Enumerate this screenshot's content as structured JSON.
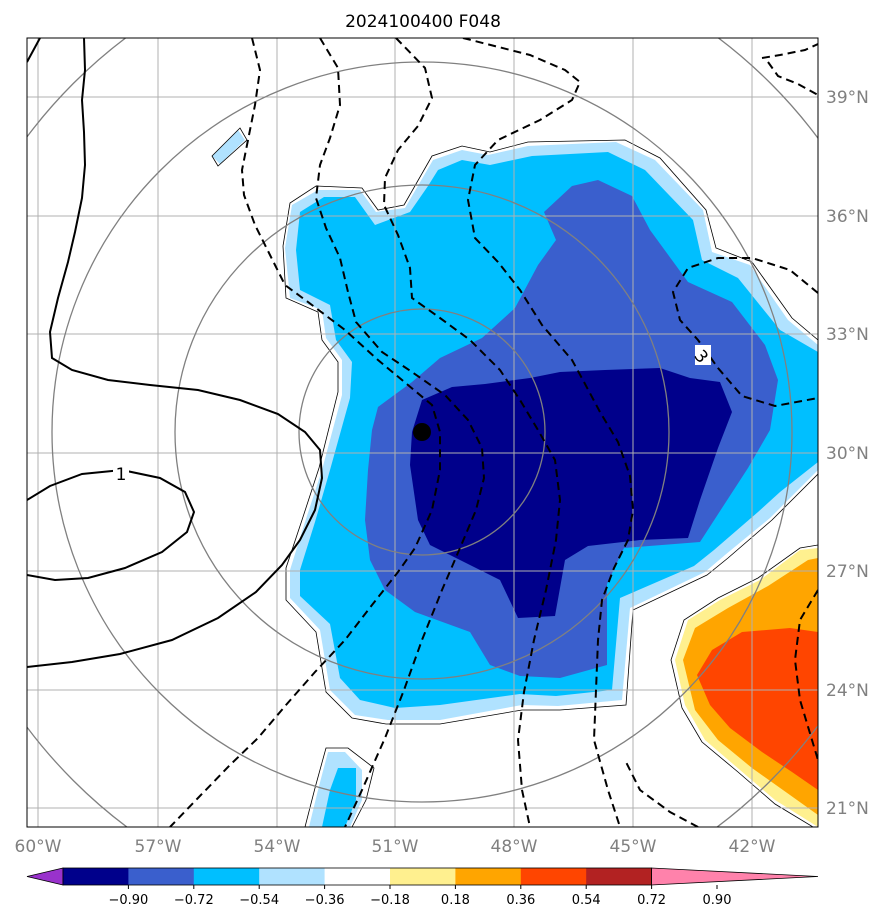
{
  "title": "2024100400 F048",
  "map": {
    "lon_range": [
      -60.3,
      -41.3
    ],
    "lat_range": [
      20.5,
      40.5
    ],
    "lon_ticks": [
      {
        "value": -60,
        "label": "60°W"
      },
      {
        "value": -57,
        "label": "57°W"
      },
      {
        "value": -54,
        "label": "54°W"
      },
      {
        "value": -51,
        "label": "51°W"
      },
      {
        "value": -48,
        "label": "48°W"
      },
      {
        "value": -45,
        "label": "45°W"
      },
      {
        "value": -42,
        "label": "42°W"
      }
    ],
    "lat_ticks": [
      {
        "value": 21,
        "label": "21°N"
      },
      {
        "value": 24,
        "label": "24°N"
      },
      {
        "value": 27,
        "label": "27°N"
      },
      {
        "value": 30,
        "label": "30°N"
      },
      {
        "value": 33,
        "label": "33°N"
      },
      {
        "value": 36,
        "label": "36°N"
      },
      {
        "value": 39,
        "label": "39°N"
      }
    ],
    "storm_center": {
      "lon": -50.7,
      "lat": 30.55
    },
    "contour_labels": [
      {
        "text": "1",
        "lon": -57.5,
        "lat": 29.5
      },
      {
        "text": "3",
        "lon": -43.4,
        "lat": 32.4
      }
    ]
  },
  "colorbar": {
    "colors": [
      "#9932cc",
      "#00008b",
      "#3a5fcd",
      "#00bfff",
      "#b0e2ff",
      "#ffffff",
      "#fff08f",
      "#ffa500",
      "#ff4500",
      "#b22222",
      "#ff82ab"
    ],
    "labels": [
      "−0.90",
      "−0.72",
      "−0.54",
      "−0.36",
      "−0.18",
      "0.18",
      "0.36",
      "0.54",
      "0.72",
      "0.90"
    ]
  }
}
